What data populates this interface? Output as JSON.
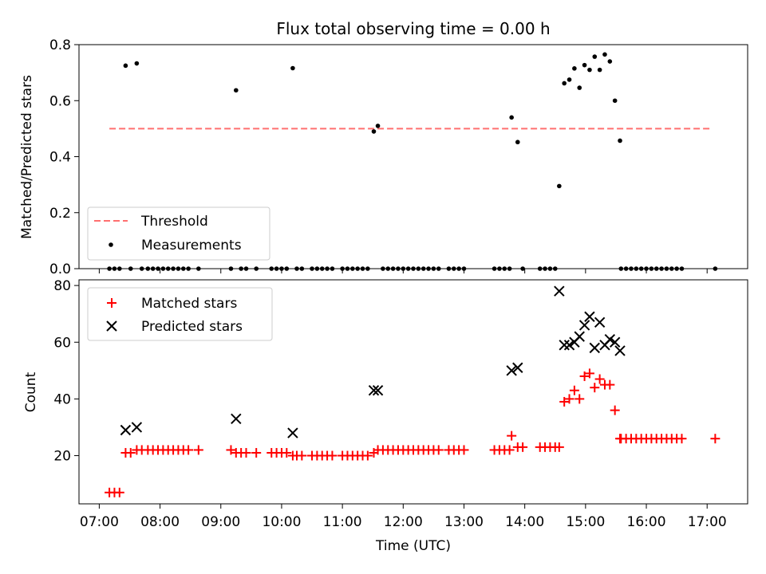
{
  "figure": {
    "title": "Flux total observing time = 0.00 h",
    "xlabel": "Time (UTC)",
    "x_ticks": [
      "07:00",
      "08:00",
      "09:00",
      "10:00",
      "11:00",
      "12:00",
      "13:00",
      "14:00",
      "15:00",
      "16:00",
      "17:00"
    ]
  },
  "chart_data": [
    {
      "type": "scatter",
      "ylabel": "Matched/Predicted stars",
      "xlim": [
        "06:40",
        "17:40"
      ],
      "ylim": [
        0,
        0.8
      ],
      "y_ticks": [
        "0.0",
        "0.2",
        "0.4",
        "0.6",
        "0.8"
      ],
      "legend": {
        "placement": "lower-left",
        "entries": [
          "Threshold",
          "Measurements"
        ]
      },
      "threshold": {
        "name": "Threshold",
        "value": 0.5,
        "x_start": "07:10",
        "x_end": "17:05",
        "color": "#ff7070"
      },
      "series": [
        {
          "name": "Measurements",
          "color": "#000000",
          "points": [
            [
              "07:10",
              0
            ],
            [
              "07:15",
              0
            ],
            [
              "07:20",
              0
            ],
            [
              "07:26",
              0.725
            ],
            [
              "07:31",
              0
            ],
            [
              "07:37",
              0.733
            ],
            [
              "07:42",
              0
            ],
            [
              "07:48",
              0
            ],
            [
              "07:53",
              0
            ],
            [
              "07:58",
              0
            ],
            [
              "08:03",
              0
            ],
            [
              "08:08",
              0
            ],
            [
              "08:13",
              0
            ],
            [
              "08:18",
              0
            ],
            [
              "08:23",
              0
            ],
            [
              "08:28",
              0
            ],
            [
              "08:38",
              0
            ],
            [
              "09:10",
              0
            ],
            [
              "09:15",
              0.637
            ],
            [
              "09:20",
              0
            ],
            [
              "09:25",
              0
            ],
            [
              "09:35",
              0
            ],
            [
              "09:50",
              0
            ],
            [
              "09:55",
              0
            ],
            [
              "10:00",
              0
            ],
            [
              "10:05",
              0
            ],
            [
              "10:11",
              0.716
            ],
            [
              "10:15",
              0
            ],
            [
              "10:20",
              0
            ],
            [
              "10:30",
              0
            ],
            [
              "10:35",
              0
            ],
            [
              "10:40",
              0
            ],
            [
              "10:45",
              0
            ],
            [
              "10:50",
              0
            ],
            [
              "11:00",
              0
            ],
            [
              "11:05",
              0
            ],
            [
              "11:10",
              0
            ],
            [
              "11:15",
              0
            ],
            [
              "11:20",
              0
            ],
            [
              "11:25",
              0
            ],
            [
              "11:31",
              0.49
            ],
            [
              "11:35",
              0.51
            ],
            [
              "11:40",
              0
            ],
            [
              "11:45",
              0
            ],
            [
              "11:50",
              0
            ],
            [
              "11:55",
              0
            ],
            [
              "12:00",
              0
            ],
            [
              "12:05",
              0
            ],
            [
              "12:10",
              0
            ],
            [
              "12:15",
              0
            ],
            [
              "12:20",
              0
            ],
            [
              "12:25",
              0
            ],
            [
              "12:30",
              0
            ],
            [
              "12:35",
              0
            ],
            [
              "12:45",
              0
            ],
            [
              "12:50",
              0
            ],
            [
              "12:55",
              0
            ],
            [
              "13:00",
              0
            ],
            [
              "13:30",
              0
            ],
            [
              "13:35",
              0
            ],
            [
              "13:40",
              0
            ],
            [
              "13:45",
              0
            ],
            [
              "13:47",
              0.54
            ],
            [
              "13:53",
              0.452
            ],
            [
              "13:58",
              0
            ],
            [
              "14:15",
              0
            ],
            [
              "14:20",
              0
            ],
            [
              "14:25",
              0
            ],
            [
              "14:30",
              0
            ],
            [
              "14:34",
              0.295
            ],
            [
              "14:39",
              0.662
            ],
            [
              "14:44",
              0.675
            ],
            [
              "14:49",
              0.715
            ],
            [
              "14:54",
              0.646
            ],
            [
              "14:59",
              0.727
            ],
            [
              "15:04",
              0.71
            ],
            [
              "15:09",
              0.757
            ],
            [
              "15:14",
              0.71
            ],
            [
              "15:19",
              0.765
            ],
            [
              "15:24",
              0.74
            ],
            [
              "15:29",
              0.6
            ],
            [
              "15:34",
              0.457
            ],
            [
              "15:35",
              0
            ],
            [
              "15:40",
              0
            ],
            [
              "15:45",
              0
            ],
            [
              "15:50",
              0
            ],
            [
              "15:55",
              0
            ],
            [
              "16:00",
              0
            ],
            [
              "16:05",
              0
            ],
            [
              "16:10",
              0
            ],
            [
              "16:15",
              0
            ],
            [
              "16:20",
              0
            ],
            [
              "16:25",
              0
            ],
            [
              "16:30",
              0
            ],
            [
              "16:35",
              0
            ],
            [
              "17:08",
              0
            ]
          ]
        }
      ]
    },
    {
      "type": "scatter",
      "ylabel": "Count",
      "xlim": [
        "06:40",
        "17:40"
      ],
      "ylim": [
        3,
        82
      ],
      "y_ticks": [
        "20",
        "40",
        "60",
        "80"
      ],
      "legend": {
        "placement": "upper-left",
        "entries": [
          "Matched stars",
          "Predicted stars"
        ]
      },
      "series": [
        {
          "name": "Matched stars",
          "marker": "plus",
          "color": "#ff0000",
          "points": [
            [
              "07:10",
              7
            ],
            [
              "07:15",
              7
            ],
            [
              "07:20",
              7
            ],
            [
              "07:26",
              21
            ],
            [
              "07:31",
              21
            ],
            [
              "07:37",
              22
            ],
            [
              "07:42",
              22
            ],
            [
              "07:48",
              22
            ],
            [
              "07:53",
              22
            ],
            [
              "07:58",
              22
            ],
            [
              "08:03",
              22
            ],
            [
              "08:08",
              22
            ],
            [
              "08:13",
              22
            ],
            [
              "08:18",
              22
            ],
            [
              "08:23",
              22
            ],
            [
              "08:28",
              22
            ],
            [
              "08:38",
              22
            ],
            [
              "09:10",
              22
            ],
            [
              "09:15",
              21
            ],
            [
              "09:20",
              21
            ],
            [
              "09:25",
              21
            ],
            [
              "09:35",
              21
            ],
            [
              "09:50",
              21
            ],
            [
              "09:55",
              21
            ],
            [
              "10:00",
              21
            ],
            [
              "10:05",
              21
            ],
            [
              "10:11",
              20
            ],
            [
              "10:15",
              20
            ],
            [
              "10:20",
              20
            ],
            [
              "10:30",
              20
            ],
            [
              "10:35",
              20
            ],
            [
              "10:40",
              20
            ],
            [
              "10:45",
              20
            ],
            [
              "10:50",
              20
            ],
            [
              "11:00",
              20
            ],
            [
              "11:05",
              20
            ],
            [
              "11:10",
              20
            ],
            [
              "11:15",
              20
            ],
            [
              "11:20",
              20
            ],
            [
              "11:25",
              20
            ],
            [
              "11:31",
              21
            ],
            [
              "11:35",
              22
            ],
            [
              "11:40",
              22
            ],
            [
              "11:45",
              22
            ],
            [
              "11:50",
              22
            ],
            [
              "11:55",
              22
            ],
            [
              "12:00",
              22
            ],
            [
              "12:05",
              22
            ],
            [
              "12:10",
              22
            ],
            [
              "12:15",
              22
            ],
            [
              "12:20",
              22
            ],
            [
              "12:25",
              22
            ],
            [
              "12:30",
              22
            ],
            [
              "12:35",
              22
            ],
            [
              "12:45",
              22
            ],
            [
              "12:50",
              22
            ],
            [
              "12:55",
              22
            ],
            [
              "13:00",
              22
            ],
            [
              "13:30",
              22
            ],
            [
              "13:35",
              22
            ],
            [
              "13:40",
              22
            ],
            [
              "13:45",
              22
            ],
            [
              "13:47",
              27
            ],
            [
              "13:53",
              23
            ],
            [
              "13:58",
              23
            ],
            [
              "14:15",
              23
            ],
            [
              "14:20",
              23
            ],
            [
              "14:25",
              23
            ],
            [
              "14:30",
              23
            ],
            [
              "14:34",
              23
            ],
            [
              "14:39",
              39
            ],
            [
              "14:44",
              40
            ],
            [
              "14:49",
              43
            ],
            [
              "14:54",
              40
            ],
            [
              "14:59",
              48
            ],
            [
              "15:04",
              49
            ],
            [
              "15:09",
              44
            ],
            [
              "15:14",
              47
            ],
            [
              "15:19",
              45
            ],
            [
              "15:24",
              45
            ],
            [
              "15:29",
              36
            ],
            [
              "15:34",
              26
            ],
            [
              "15:35",
              26
            ],
            [
              "15:40",
              26
            ],
            [
              "15:45",
              26
            ],
            [
              "15:50",
              26
            ],
            [
              "15:55",
              26
            ],
            [
              "16:00",
              26
            ],
            [
              "16:05",
              26
            ],
            [
              "16:10",
              26
            ],
            [
              "16:15",
              26
            ],
            [
              "16:20",
              26
            ],
            [
              "16:25",
              26
            ],
            [
              "16:30",
              26
            ],
            [
              "16:35",
              26
            ],
            [
              "17:08",
              26
            ]
          ]
        },
        {
          "name": "Predicted stars",
          "marker": "x",
          "color": "#000000",
          "points": [
            [
              "07:26",
              29
            ],
            [
              "07:37",
              30
            ],
            [
              "09:15",
              33
            ],
            [
              "10:11",
              28
            ],
            [
              "11:31",
              43
            ],
            [
              "11:35",
              43
            ],
            [
              "13:47",
              50
            ],
            [
              "13:53",
              51
            ],
            [
              "14:34",
              78
            ],
            [
              "14:39",
              59
            ],
            [
              "14:44",
              59
            ],
            [
              "14:49",
              60
            ],
            [
              "14:54",
              62
            ],
            [
              "14:59",
              66
            ],
            [
              "15:04",
              69
            ],
            [
              "15:09",
              58
            ],
            [
              "15:14",
              67
            ],
            [
              "15:19",
              59
            ],
            [
              "15:24",
              61
            ],
            [
              "15:29",
              60
            ],
            [
              "15:34",
              57
            ]
          ]
        }
      ]
    }
  ]
}
